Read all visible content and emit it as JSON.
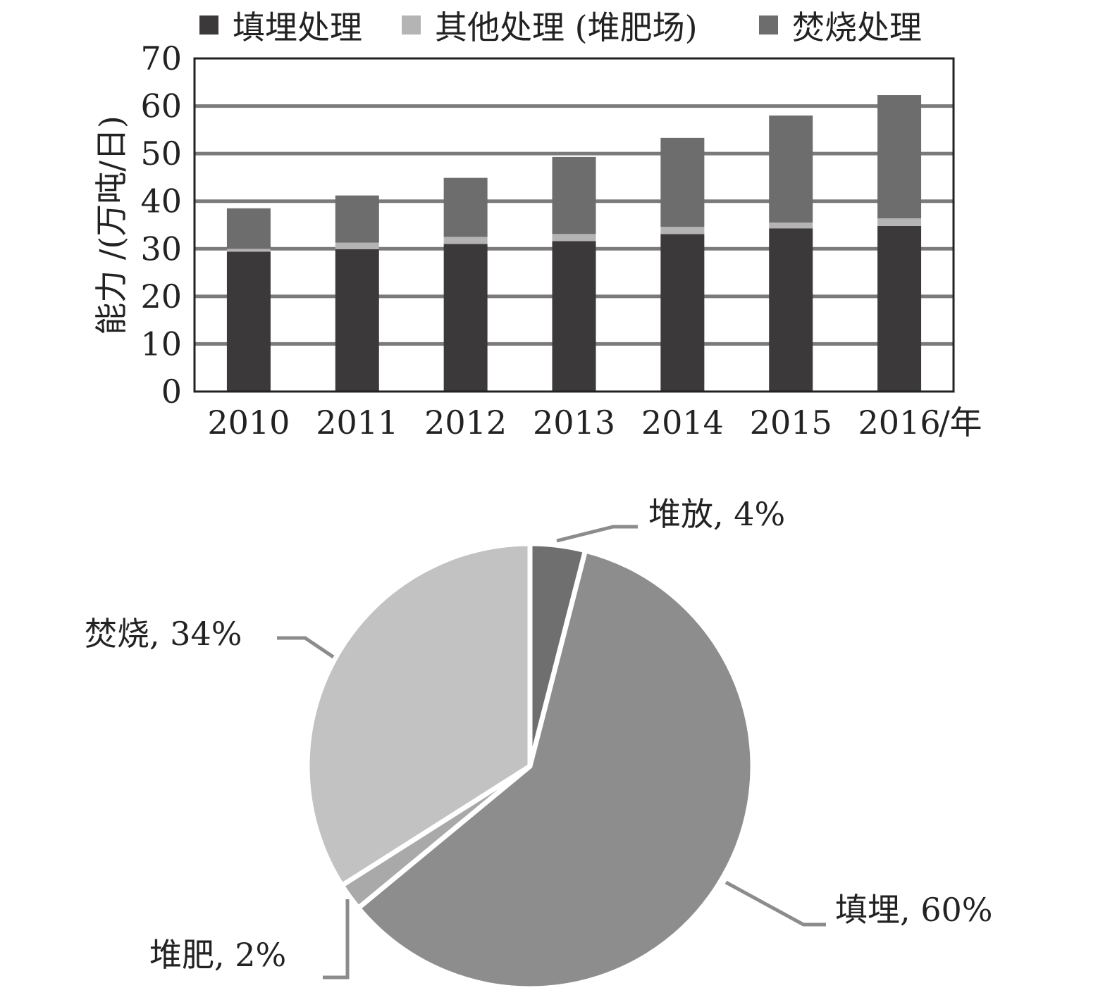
{
  "chart_data": [
    {
      "type": "bar",
      "stacked": true,
      "categories": [
        "2010",
        "2011",
        "2012",
        "2013",
        "2014",
        "2015",
        "2016"
      ],
      "x_unit": "/年",
      "series": [
        {
          "name": "填埋处理",
          "color": "#3c393a",
          "values": [
            29.4,
            29.9,
            31.0,
            31.6,
            33.1,
            34.3,
            34.8
          ]
        },
        {
          "name": "其他处理 (堆肥场)",
          "color": "#b4b4b4",
          "values": [
            0.6,
            1.4,
            1.5,
            1.5,
            1.5,
            1.2,
            1.6
          ]
        },
        {
          "name": "焚烧处理",
          "color": "#6e6d6e",
          "values": [
            8.5,
            9.9,
            12.4,
            16.2,
            18.7,
            22.5,
            25.9
          ]
        }
      ],
      "ylabel": "能力 /(万吨/日)",
      "ylim": [
        0,
        70
      ],
      "yticks": [
        0,
        10,
        20,
        30,
        40,
        50,
        60,
        70
      ],
      "grid": true,
      "legend": "top"
    },
    {
      "type": "pie",
      "slices": [
        {
          "label": "堆放, 4%",
          "value": 4,
          "color": "#6f6f6f"
        },
        {
          "label": "填埋, 60%",
          "value": 60,
          "color": "#8d8d8d"
        },
        {
          "label": "堆肥, 2%",
          "value": 2,
          "color": "#a9a9a9"
        },
        {
          "label": "焚烧, 34%",
          "value": 34,
          "color": "#c2c2c2"
        }
      ]
    }
  ]
}
